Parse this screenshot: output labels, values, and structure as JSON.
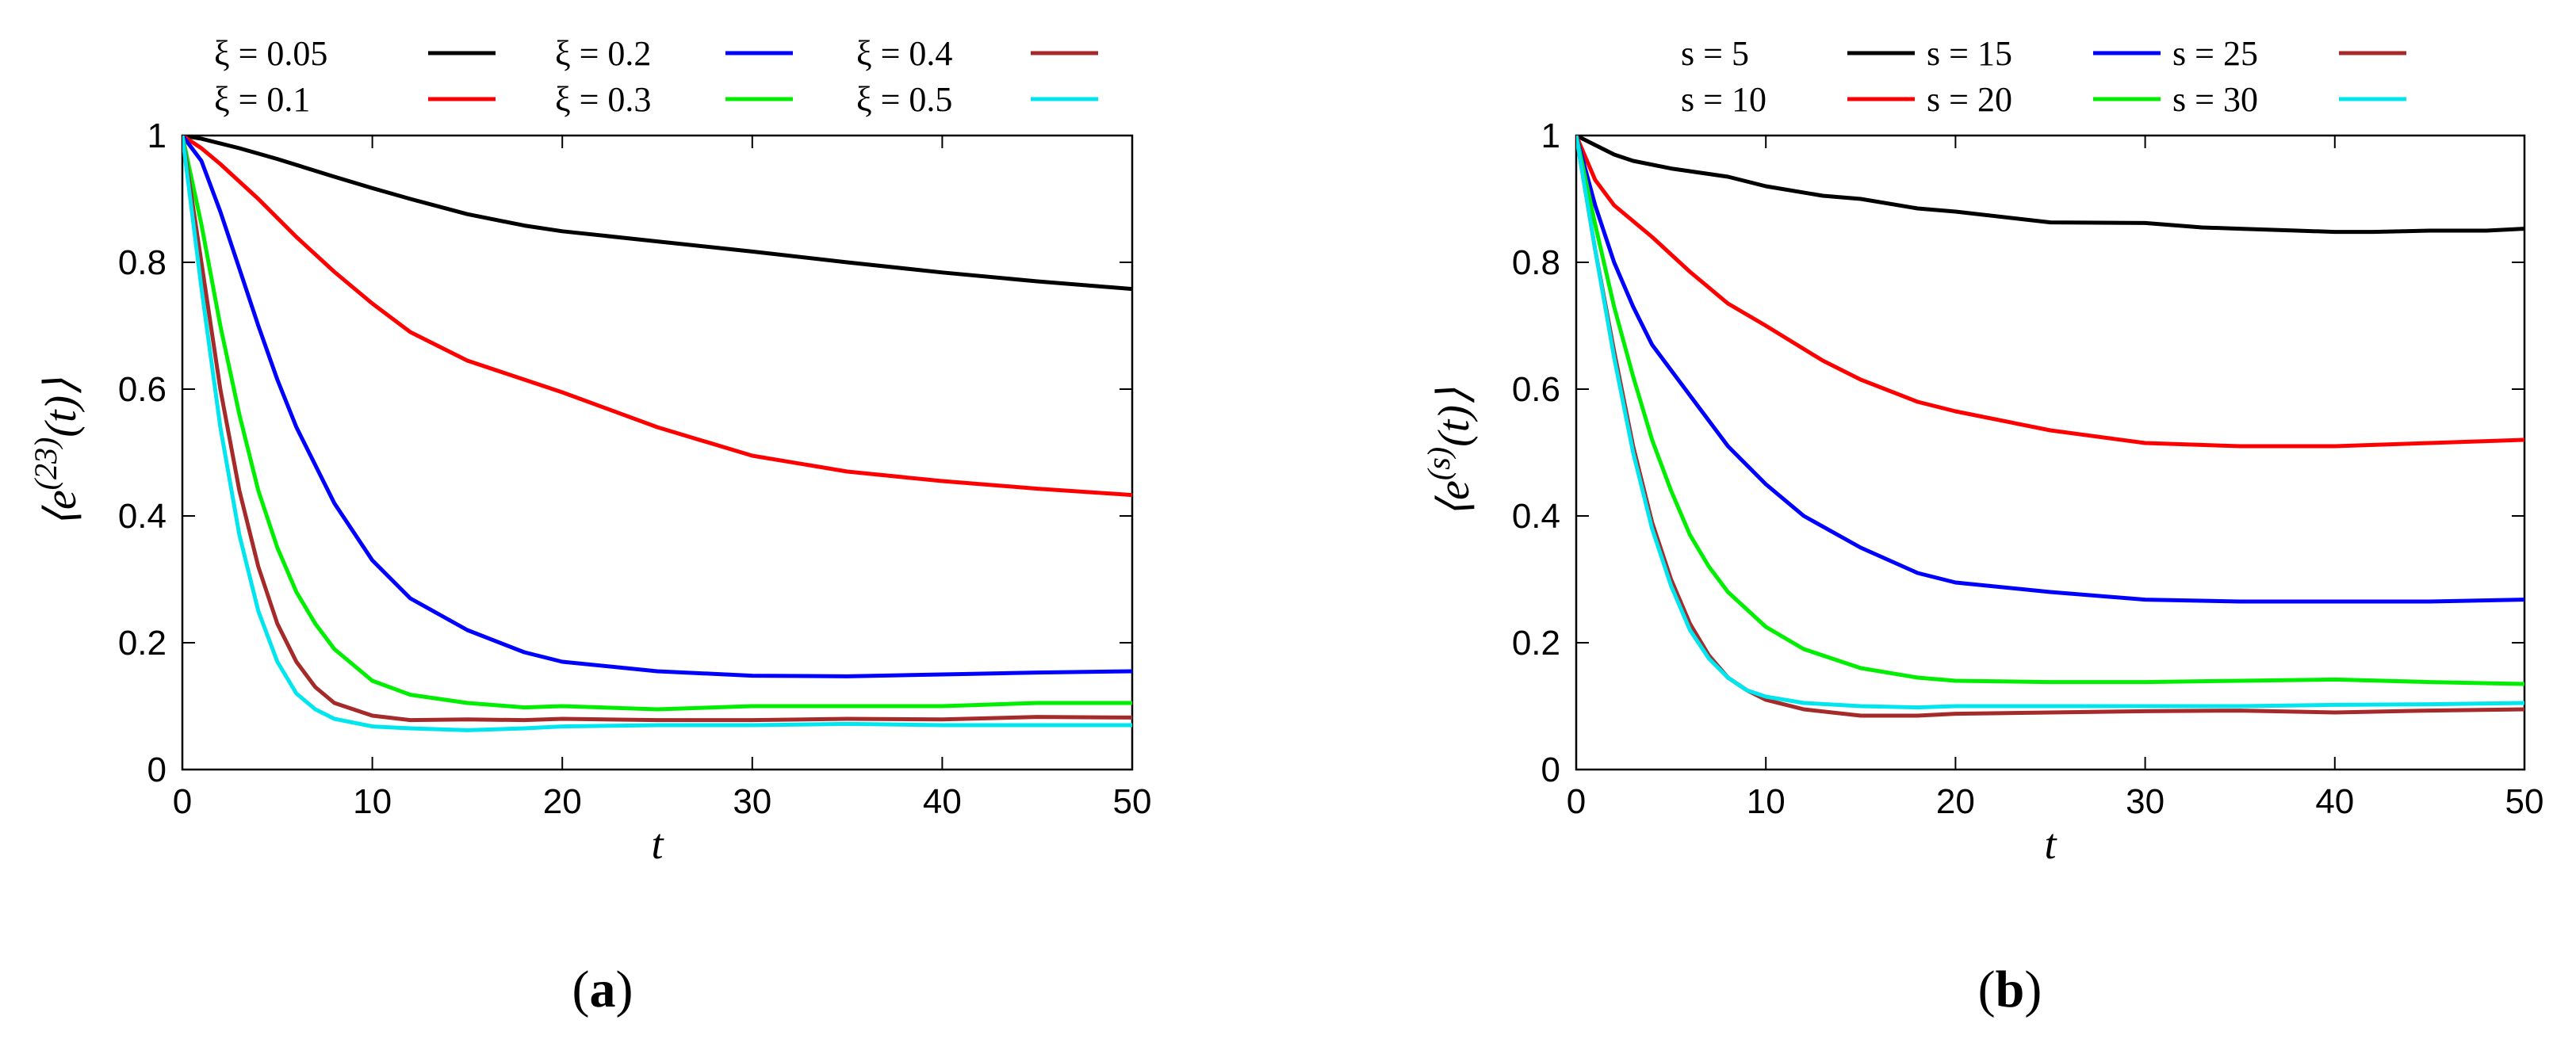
{
  "chart_data": [
    {
      "type": "line",
      "panel": "(a)",
      "panel_letter": "a",
      "xlabel": "t",
      "ylabel_base": "⟨e",
      "ylabel_sup": "(23)",
      "ylabel_tail": "(t)⟩",
      "xlim": [
        0,
        50
      ],
      "ylim": [
        0,
        1
      ],
      "xticks": [
        "0",
        "10",
        "20",
        "30",
        "40",
        "50"
      ],
      "yticks": [
        "0",
        "0.2",
        "0.4",
        "0.6",
        "0.8",
        "1"
      ],
      "legend_position": "top",
      "series": [
        {
          "name": "ξ = 0.05",
          "color": "#000000",
          "x": [
            0,
            1,
            3,
            5,
            8,
            10,
            12,
            15,
            18,
            20,
            25,
            30,
            35,
            40,
            45,
            50
          ],
          "y": [
            1,
            0.995,
            0.98,
            0.963,
            0.935,
            0.917,
            0.9,
            0.876,
            0.858,
            0.849,
            0.833,
            0.817,
            0.8,
            0.784,
            0.77,
            0.758
          ]
        },
        {
          "name": "ξ = 0.1",
          "color": "#ff0000",
          "x": [
            0,
            1,
            2,
            4,
            6,
            8,
            10,
            12,
            15,
            18,
            20,
            25,
            30,
            35,
            40,
            45,
            50
          ],
          "y": [
            1,
            0.98,
            0.955,
            0.9,
            0.84,
            0.785,
            0.735,
            0.69,
            0.645,
            0.615,
            0.595,
            0.54,
            0.495,
            0.47,
            0.455,
            0.443,
            0.433
          ]
        },
        {
          "name": "ξ = 0.2",
          "color": "#0000ff",
          "x": [
            0,
            1,
            2,
            3,
            4,
            5,
            6,
            8,
            10,
            12,
            15,
            18,
            20,
            25,
            30,
            35,
            40,
            45,
            50
          ],
          "y": [
            1,
            0.96,
            0.88,
            0.79,
            0.7,
            0.615,
            0.54,
            0.42,
            0.33,
            0.27,
            0.22,
            0.185,
            0.17,
            0.155,
            0.148,
            0.147,
            0.15,
            0.153,
            0.155
          ]
        },
        {
          "name": "ξ = 0.3",
          "color": "#00ee00",
          "x": [
            0,
            1,
            2,
            3,
            4,
            5,
            6,
            7,
            8,
            10,
            12,
            15,
            18,
            20,
            25,
            30,
            35,
            40,
            45,
            50
          ],
          "y": [
            1,
            0.86,
            0.7,
            0.56,
            0.44,
            0.35,
            0.28,
            0.23,
            0.19,
            0.14,
            0.118,
            0.105,
            0.098,
            0.1,
            0.095,
            0.1,
            0.1,
            0.1,
            0.105,
            0.105
          ]
        },
        {
          "name": "ξ = 0.4",
          "color": "#a52a2a",
          "x": [
            0,
            1,
            2,
            3,
            4,
            5,
            6,
            7,
            8,
            10,
            12,
            15,
            18,
            20,
            25,
            30,
            35,
            40,
            45,
            50
          ],
          "y": [
            1,
            0.8,
            0.6,
            0.44,
            0.32,
            0.23,
            0.17,
            0.13,
            0.105,
            0.085,
            0.078,
            0.079,
            0.078,
            0.08,
            0.078,
            0.078,
            0.08,
            0.079,
            0.083,
            0.082
          ]
        },
        {
          "name": "ξ = 0.5",
          "color": "#00e5ee",
          "x": [
            0,
            1,
            2,
            3,
            4,
            5,
            6,
            7,
            8,
            10,
            12,
            15,
            18,
            20,
            25,
            30,
            35,
            40,
            45,
            50
          ],
          "y": [
            1,
            0.76,
            0.54,
            0.37,
            0.25,
            0.17,
            0.12,
            0.095,
            0.08,
            0.068,
            0.065,
            0.062,
            0.065,
            0.068,
            0.07,
            0.07,
            0.072,
            0.07,
            0.07,
            0.07
          ]
        }
      ]
    },
    {
      "type": "line",
      "panel": "(b)",
      "panel_letter": "b",
      "xlabel": "t",
      "ylabel_base": "⟨e",
      "ylabel_sup": "(s)",
      "ylabel_tail": "(t)⟩",
      "xlim": [
        0,
        50
      ],
      "ylim": [
        0,
        1
      ],
      "xticks": [
        "0",
        "10",
        "20",
        "30",
        "40",
        "50"
      ],
      "yticks": [
        "0",
        "0.2",
        "0.4",
        "0.6",
        "0.8",
        "1"
      ],
      "legend_position": "top",
      "series": [
        {
          "name": "s = 5",
          "color": "#000000",
          "x": [
            0,
            1,
            2,
            3,
            5,
            8,
            10,
            13,
            15,
            18,
            20,
            25,
            30,
            33,
            35,
            38,
            40,
            42,
            45,
            48,
            50
          ],
          "y": [
            1,
            0.985,
            0.97,
            0.96,
            0.948,
            0.935,
            0.92,
            0.905,
            0.9,
            0.885,
            0.88,
            0.863,
            0.862,
            0.855,
            0.853,
            0.85,
            0.848,
            0.848,
            0.85,
            0.85,
            0.853
          ]
        },
        {
          "name": "s = 10",
          "color": "#ff0000",
          "x": [
            0,
            1,
            2,
            4,
            6,
            8,
            10,
            13,
            15,
            18,
            20,
            25,
            30,
            35,
            40,
            45,
            50
          ],
          "y": [
            1,
            0.93,
            0.89,
            0.84,
            0.785,
            0.735,
            0.7,
            0.645,
            0.615,
            0.58,
            0.565,
            0.535,
            0.515,
            0.51,
            0.51,
            0.515,
            0.52
          ]
        },
        {
          "name": "s = 15",
          "color": "#0000ff",
          "x": [
            0,
            1,
            2,
            3,
            4,
            5,
            6,
            8,
            10,
            12,
            15,
            18,
            20,
            25,
            30,
            35,
            40,
            45,
            50
          ],
          "y": [
            1,
            0.89,
            0.8,
            0.73,
            0.67,
            0.63,
            0.59,
            0.51,
            0.45,
            0.4,
            0.35,
            0.31,
            0.295,
            0.28,
            0.268,
            0.265,
            0.265,
            0.265,
            0.268
          ]
        },
        {
          "name": "s = 20",
          "color": "#00ee00",
          "x": [
            0,
            1,
            2,
            3,
            4,
            5,
            6,
            7,
            8,
            10,
            12,
            15,
            18,
            20,
            25,
            30,
            35,
            40,
            45,
            50
          ],
          "y": [
            1,
            0.86,
            0.73,
            0.62,
            0.52,
            0.44,
            0.37,
            0.32,
            0.28,
            0.225,
            0.19,
            0.16,
            0.145,
            0.14,
            0.138,
            0.138,
            0.14,
            0.142,
            0.138,
            0.135
          ]
        },
        {
          "name": "s = 25",
          "color": "#a52a2a",
          "x": [
            0,
            1,
            2,
            3,
            4,
            5,
            6,
            7,
            8,
            9,
            10,
            12,
            15,
            18,
            20,
            25,
            30,
            35,
            40,
            45,
            50
          ],
          "y": [
            1,
            0.82,
            0.66,
            0.51,
            0.39,
            0.3,
            0.23,
            0.18,
            0.145,
            0.125,
            0.11,
            0.095,
            0.085,
            0.085,
            0.088,
            0.09,
            0.092,
            0.093,
            0.09,
            0.093,
            0.095
          ]
        },
        {
          "name": "s = 30",
          "color": "#00e5ee",
          "x": [
            0,
            1,
            2,
            3,
            4,
            5,
            6,
            7,
            8,
            9,
            10,
            12,
            15,
            18,
            20,
            25,
            30,
            35,
            40,
            45,
            50
          ],
          "y": [
            1,
            0.82,
            0.65,
            0.5,
            0.38,
            0.29,
            0.22,
            0.175,
            0.145,
            0.125,
            0.115,
            0.105,
            0.1,
            0.098,
            0.1,
            0.1,
            0.1,
            0.1,
            0.102,
            0.103,
            0.105
          ]
        }
      ]
    }
  ]
}
